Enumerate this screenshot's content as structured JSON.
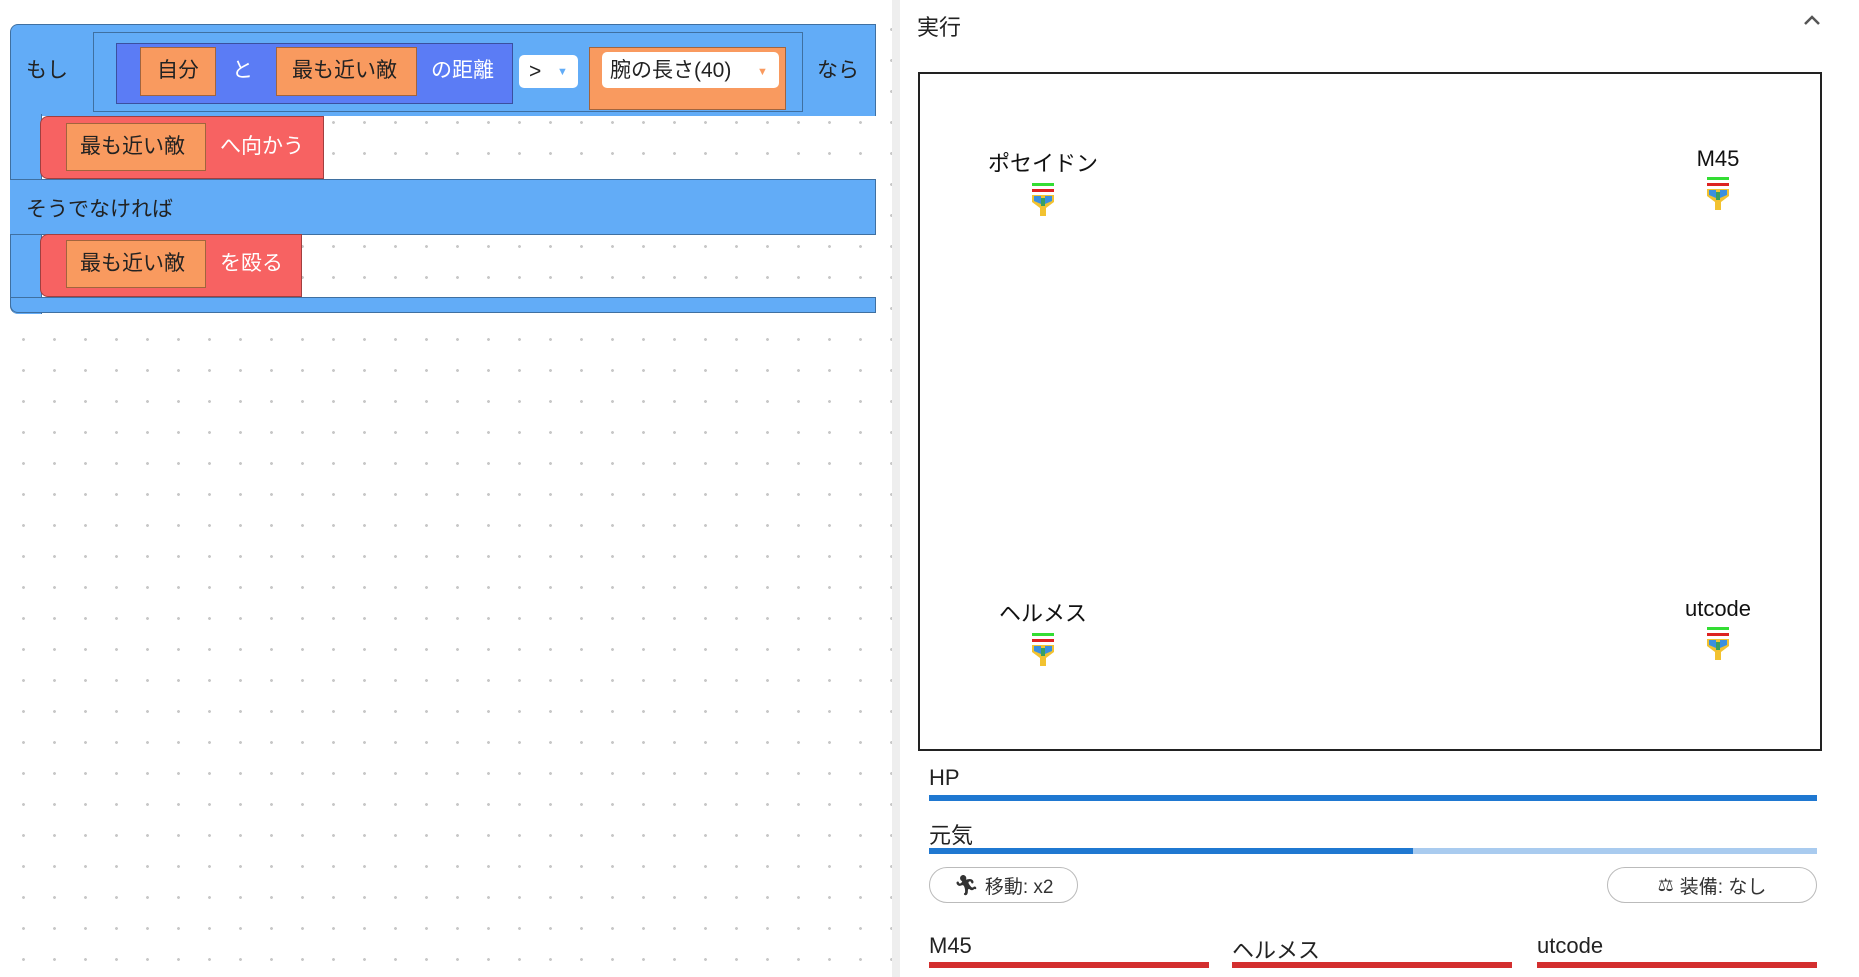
{
  "workspace": {
    "if_label": "もし",
    "then_label": "なら",
    "else_label": "そうでなければ",
    "cond": {
      "self": "自分",
      "and": "と",
      "nearest": "最も近い敵",
      "distance": "の距離",
      "operator": ">",
      "arm": "腕の長さ(40)"
    },
    "then_block": {
      "target": "最も近い敵",
      "action": "へ向かう"
    },
    "else_block": {
      "target": "最も近い敵",
      "action": "を殴る"
    }
  },
  "panel": {
    "title": "実行",
    "collapse_icon": "chevron-up-icon",
    "characters": [
      {
        "name": "ポセイドン"
      },
      {
        "name": "M45"
      },
      {
        "name": "ヘルメス"
      },
      {
        "name": "utcode"
      }
    ],
    "hp_label": "HP",
    "hp_fraction": 1.0,
    "energy_label": "元気",
    "energy_fraction": 0.545,
    "move_button": "移動: x2",
    "equip_button": "装備: なし",
    "enemies": [
      {
        "name": "M45",
        "hp_fraction": 1.0
      },
      {
        "name": "ヘルメス",
        "hp_fraction": 1.0
      },
      {
        "name": "utcode",
        "hp_fraction": 1.0
      }
    ],
    "colors": {
      "hp": "#1f78d1",
      "hp_track": "#a9cbef",
      "enemy_hp": "#d32f2f"
    }
  }
}
